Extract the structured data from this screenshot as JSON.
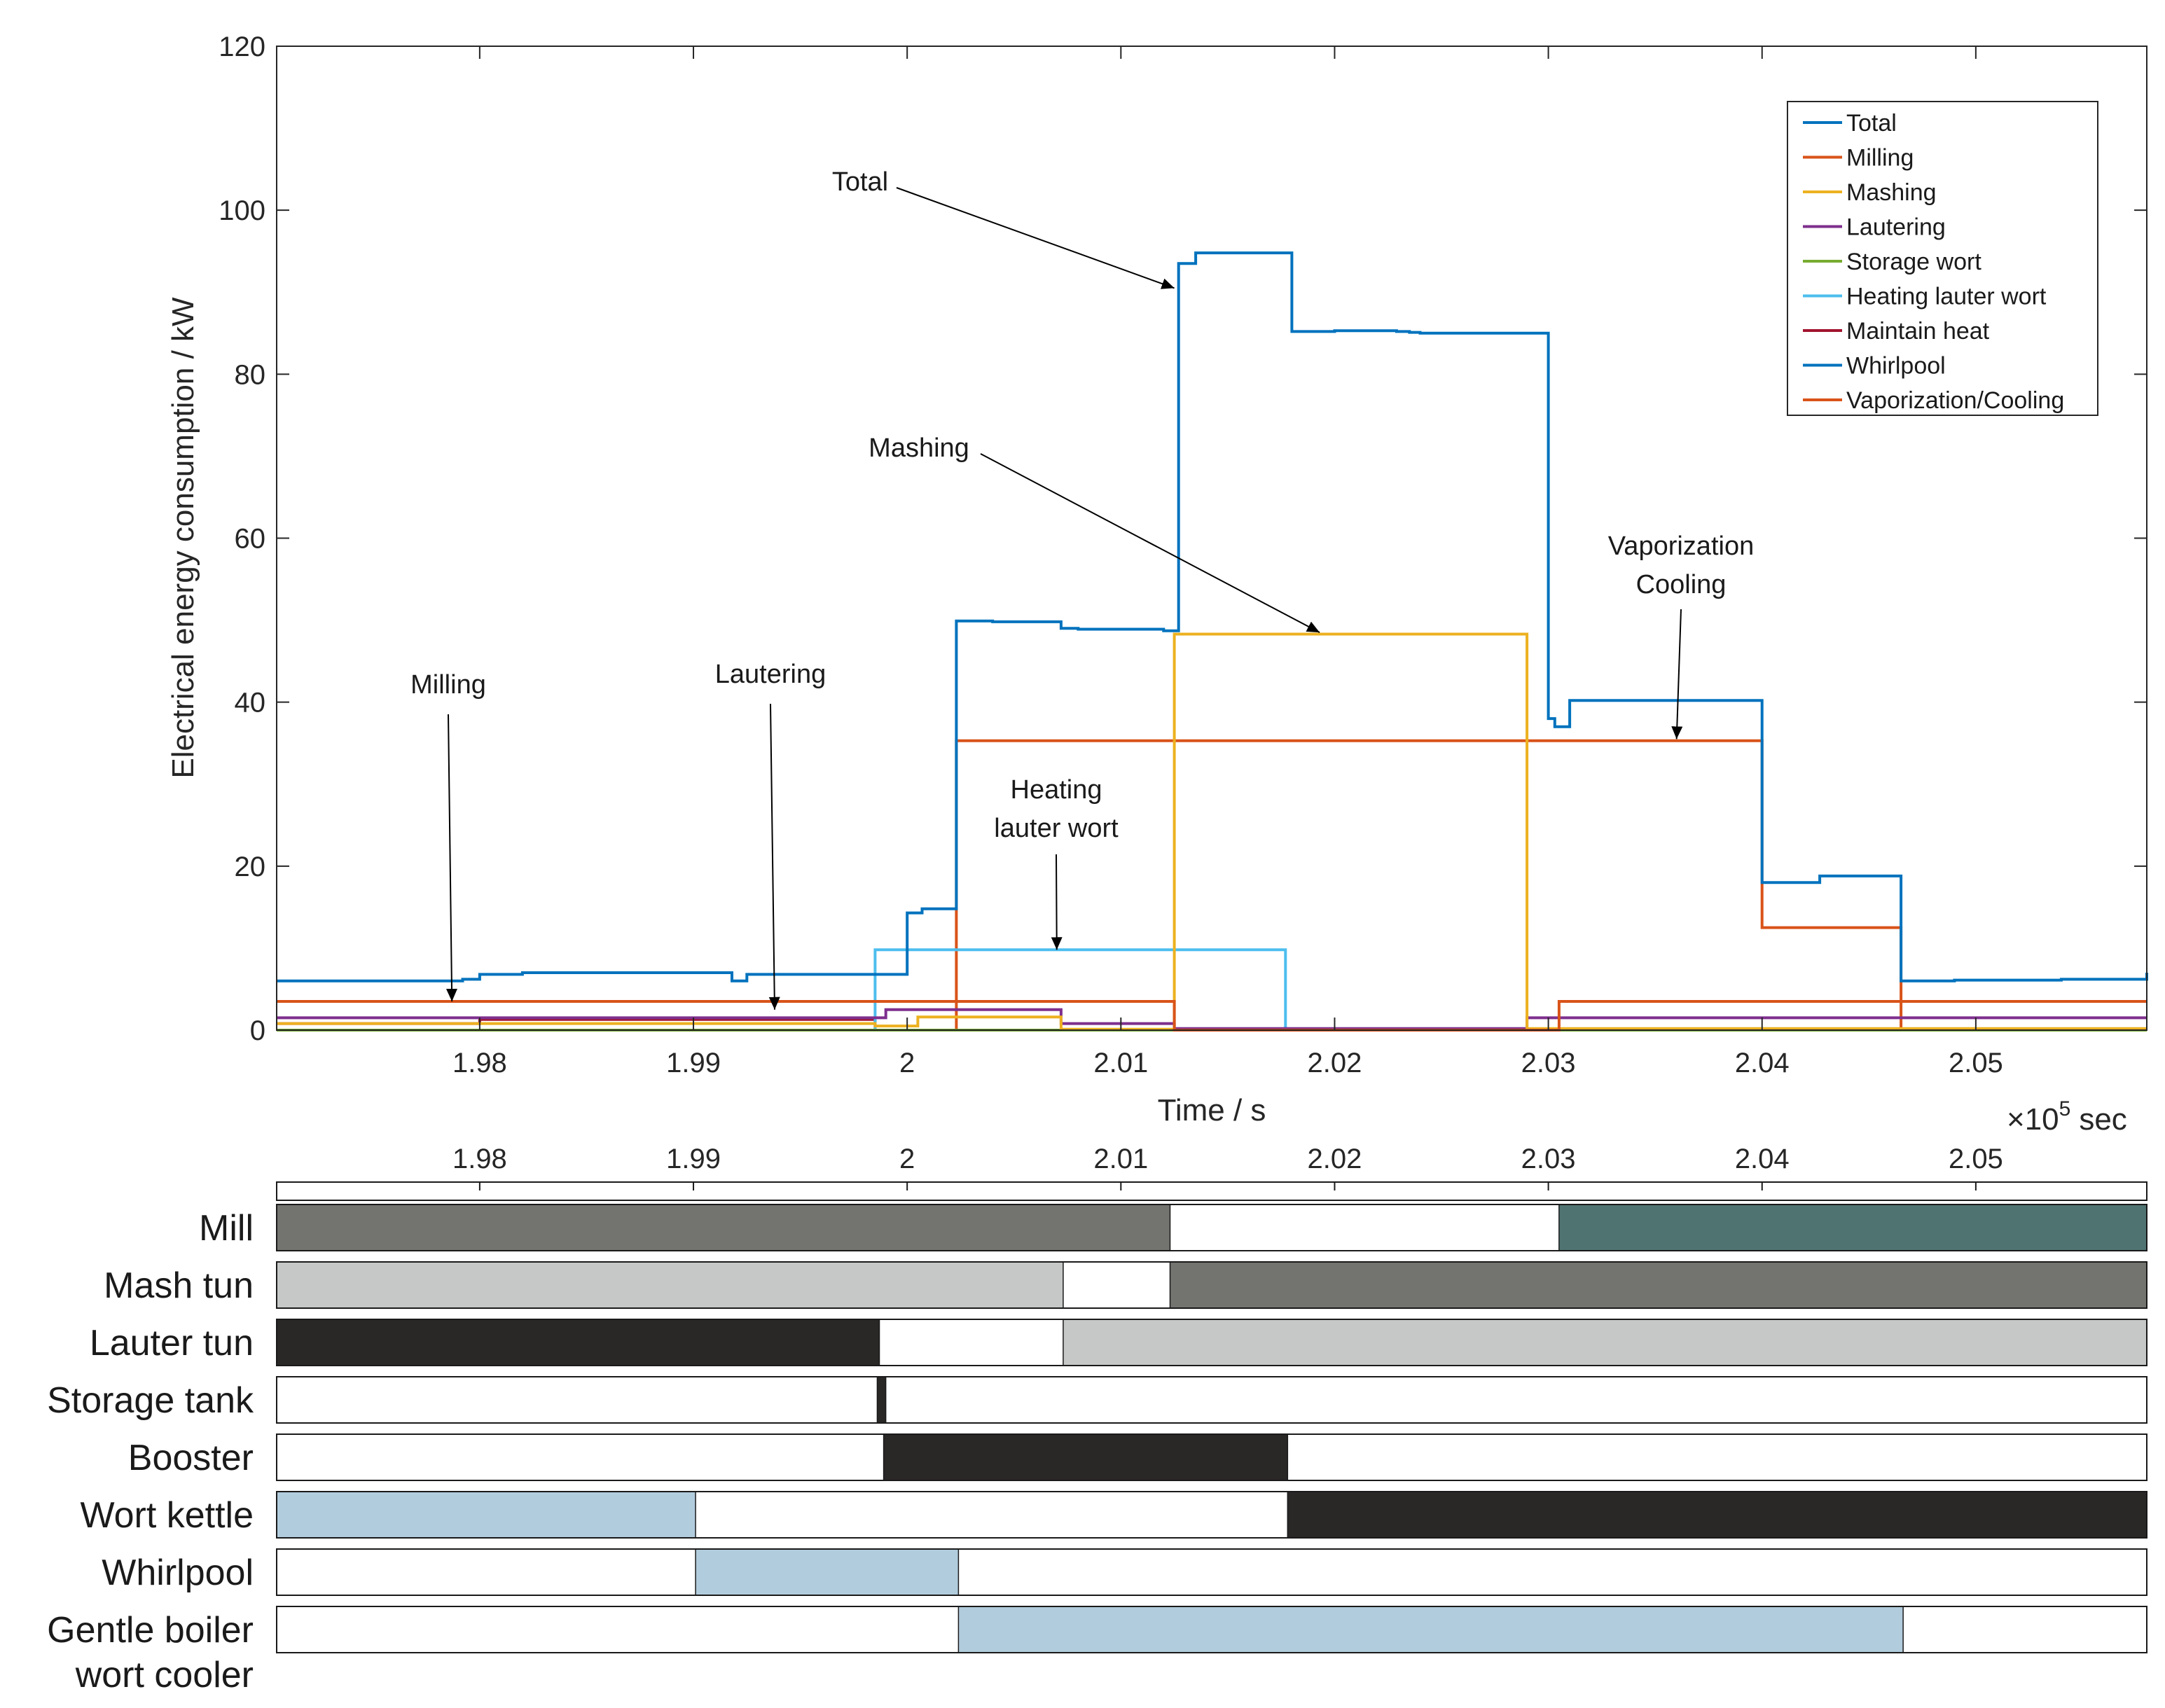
{
  "chart_data": [
    {
      "type": "line",
      "step": true,
      "title": "",
      "xlabel": "Time / s",
      "ylabel": "Electrical energy consumption / kW",
      "x_multiplier_label": "×10",
      "x_multiplier_exp": "5",
      "x_multiplier_unit": "sec",
      "xlim": [
        1.9705,
        2.058
      ],
      "ylim": [
        0,
        120
      ],
      "xticks": [
        1.98,
        1.99,
        2.0,
        2.01,
        2.02,
        2.03,
        2.04,
        2.05
      ],
      "xtick_labels": [
        "1.98",
        "1.99",
        "2",
        "2.01",
        "2.02",
        "2.03",
        "2.04",
        "2.05"
      ],
      "yticks": [
        0,
        20,
        40,
        60,
        80,
        100,
        120
      ],
      "ytick_labels": [
        "0",
        "20",
        "40",
        "60",
        "80",
        "100",
        "120"
      ],
      "grid": false,
      "legend_position": "top-right",
      "series": [
        {
          "name": "Total",
          "color": "#0072BD",
          "x": [
            1.9705,
            1.9792,
            1.98,
            1.982,
            1.99,
            1.9918,
            1.9925,
            1.9988,
            2.0,
            2.0007,
            2.0023,
            2.004,
            2.0072,
            2.008,
            2.012,
            2.0127,
            2.0135,
            2.016,
            2.0175,
            2.018,
            2.02,
            2.0229,
            2.0235,
            2.024,
            2.03,
            2.0303,
            2.0305,
            2.031,
            2.033,
            2.037,
            2.0372,
            2.0375,
            2.039,
            2.04,
            2.0425,
            2.0427,
            2.043,
            2.044,
            2.0465,
            2.049,
            2.05,
            2.054,
            2.0575,
            2.058
          ],
          "y": [
            6,
            6.2,
            6.8,
            7,
            7,
            6,
            6.8,
            6.8,
            14.3,
            14.8,
            49.9,
            49.8,
            49,
            48.9,
            48.7,
            93.5,
            94.8,
            94.8,
            94.8,
            85.2,
            85.3,
            85.2,
            85.1,
            85,
            38,
            37,
            37,
            40.2,
            40.2,
            40.2,
            40.2,
            40.2,
            40.2,
            18,
            18,
            18.8,
            18.8,
            18.8,
            6,
            6.1,
            6.1,
            6.2,
            6.2,
            7
          ]
        },
        {
          "name": "Milling",
          "color": "#D95319",
          "x": [
            1.9705,
            2.0125,
            2.0305,
            2.0465,
            2.058
          ],
          "y": [
            3.5,
            0,
            3.5,
            3.5,
            3.5
          ]
        },
        {
          "name": "Mashing",
          "color": "#EDB120",
          "x": [
            1.9705,
            1.9985,
            2.0005,
            2.0025,
            2.0072,
            2.0125,
            2.029,
            2.058
          ],
          "y": [
            0.8,
            0.5,
            1.6,
            1.6,
            0.1,
            48.3,
            0.2,
            0.2
          ]
        },
        {
          "name": "Lautering",
          "color": "#7E2F8E",
          "x": [
            1.9705,
            1.999,
            2.0072,
            2.0125,
            2.029,
            2.058
          ],
          "y": [
            1.5,
            2.5,
            0.8,
            0.2,
            1.5,
            1.5
          ]
        },
        {
          "name": "Storage wort",
          "color": "#77AC30",
          "x": [
            1.9705,
            1.9985,
            2.058
          ],
          "y": [
            0,
            0,
            0
          ]
        },
        {
          "name": "Heating lauter wort",
          "color": "#4DBEEE",
          "x": [
            1.9705,
            1.9985,
            2.0177,
            2.058
          ],
          "y": [
            0,
            9.8,
            0,
            0
          ]
        },
        {
          "name": "Maintain heat",
          "color": "#A2142F",
          "x": [
            1.9705,
            1.98,
            1.9985,
            2.058
          ],
          "y": [
            0.8,
            1.3,
            0,
            0
          ]
        },
        {
          "name": "Whirlpool",
          "color": "#0072BD",
          "x": [
            1.9705,
            2.058
          ],
          "y": [
            0,
            0
          ]
        },
        {
          "name": "Vaporization/Cooling",
          "color": "#D95319",
          "x": [
            1.9705,
            2.0023,
            2.04,
            2.0465,
            2.058
          ],
          "y": [
            0,
            35.3,
            12.5,
            0,
            0
          ]
        }
      ],
      "annotations": [
        {
          "lines": [
            "Total"
          ],
          "target": [
            2.0125,
            90.5
          ]
        },
        {
          "lines": [
            "Mashing"
          ],
          "target": [
            2.0193,
            48.5
          ]
        },
        {
          "lines": [
            "Vaporization",
            "Cooling"
          ],
          "target": [
            2.036,
            35.5
          ]
        },
        {
          "lines": [
            "Heating",
            "lauter wort"
          ],
          "target": [
            2.007,
            9.8
          ]
        },
        {
          "lines": [
            "Milling"
          ],
          "target": [
            1.9787,
            3.5
          ]
        },
        {
          "lines": [
            "Lautering"
          ],
          "target": [
            1.9938,
            2.5
          ]
        }
      ]
    },
    {
      "type": "gantt",
      "xlim": [
        1.9705,
        2.058
      ],
      "xticks": [
        1.98,
        1.99,
        2.0,
        2.01,
        2.02,
        2.03,
        2.04,
        2.05
      ],
      "xtick_labels": [
        "1.98",
        "1.99",
        "2",
        "2.01",
        "2.02",
        "2.03",
        "2.04",
        "2.05"
      ],
      "rows": [
        {
          "label": [
            "Mill"
          ],
          "segments": [
            {
              "start": 1.9705,
              "end": 2.0123,
              "color": "#737370"
            },
            {
              "start": 2.0305,
              "end": 2.058,
              "color": "#4F7371"
            }
          ]
        },
        {
          "label": [
            "Mash tun"
          ],
          "segments": [
            {
              "start": 1.9705,
              "end": 2.0073,
              "color": "#C6C8C8"
            },
            {
              "start": 2.0123,
              "end": 2.058,
              "color": "#737370"
            }
          ]
        },
        {
          "label": [
            "Lauter tun"
          ],
          "segments": [
            {
              "start": 1.9705,
              "end": 1.9987,
              "color": "#2A2727"
            },
            {
              "start": 2.0073,
              "end": 2.058,
              "color": "#C6C8C8"
            }
          ]
        },
        {
          "label": [
            "Storage tank"
          ],
          "segments": [
            {
              "start": 1.9986,
              "end": 1.999,
              "color": "#2A2727"
            }
          ]
        },
        {
          "label": [
            "Booster"
          ],
          "segments": [
            {
              "start": 1.9989,
              "end": 2.0178,
              "color": "#2A2727"
            }
          ]
        },
        {
          "label": [
            "Wort kettle"
          ],
          "segments": [
            {
              "start": 1.9705,
              "end": 1.9901,
              "color": "#B1CCDC"
            },
            {
              "start": 2.0178,
              "end": 2.058,
              "color": "#2A2727"
            }
          ]
        },
        {
          "label": [
            "Whirlpool"
          ],
          "segments": [
            {
              "start": 1.9901,
              "end": 2.0024,
              "color": "#B1CCDC"
            }
          ]
        },
        {
          "label": [
            "Gentle boiler",
            "wort cooler"
          ],
          "segments": [
            {
              "start": 2.0024,
              "end": 2.0466,
              "color": "#B1CCDC"
            }
          ]
        }
      ]
    }
  ]
}
